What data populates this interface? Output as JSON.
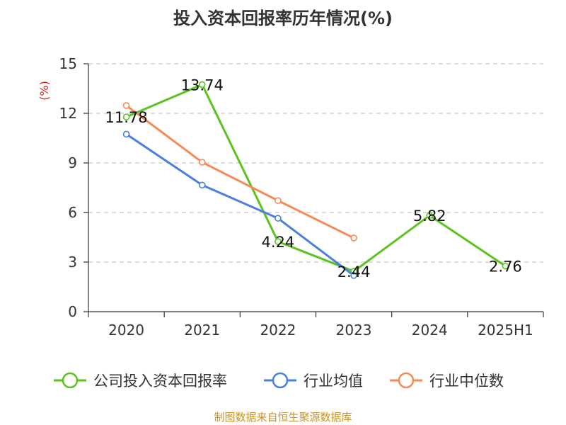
{
  "chart_data": {
    "type": "line",
    "title": "投入资本回报率历年情况(%)",
    "ylabel": "(%)",
    "xlabel": "",
    "categories": [
      "2020",
      "2021",
      "2022",
      "2023",
      "2024",
      "2025H1"
    ],
    "ylim": [
      0,
      15
    ],
    "yticks": [
      0,
      3,
      6,
      9,
      12,
      15
    ],
    "grid": true,
    "legend_position": "bottom",
    "series": [
      {
        "name": "公司投入资本回报率",
        "color": "#5cc21f",
        "show_labels": true,
        "values": [
          11.78,
          13.74,
          4.24,
          2.44,
          5.82,
          2.76
        ]
      },
      {
        "name": "行业均值",
        "color": "#4a7fde",
        "show_labels": false,
        "values": [
          10.74,
          7.66,
          5.65,
          2.19,
          null,
          null
        ]
      },
      {
        "name": "行业中位数",
        "color": "#f58a56",
        "show_labels": false,
        "values": [
          12.47,
          9.04,
          6.72,
          4.46,
          null,
          null
        ]
      }
    ]
  },
  "footer": {
    "source": "制图数据来自恒生聚源数据库"
  }
}
